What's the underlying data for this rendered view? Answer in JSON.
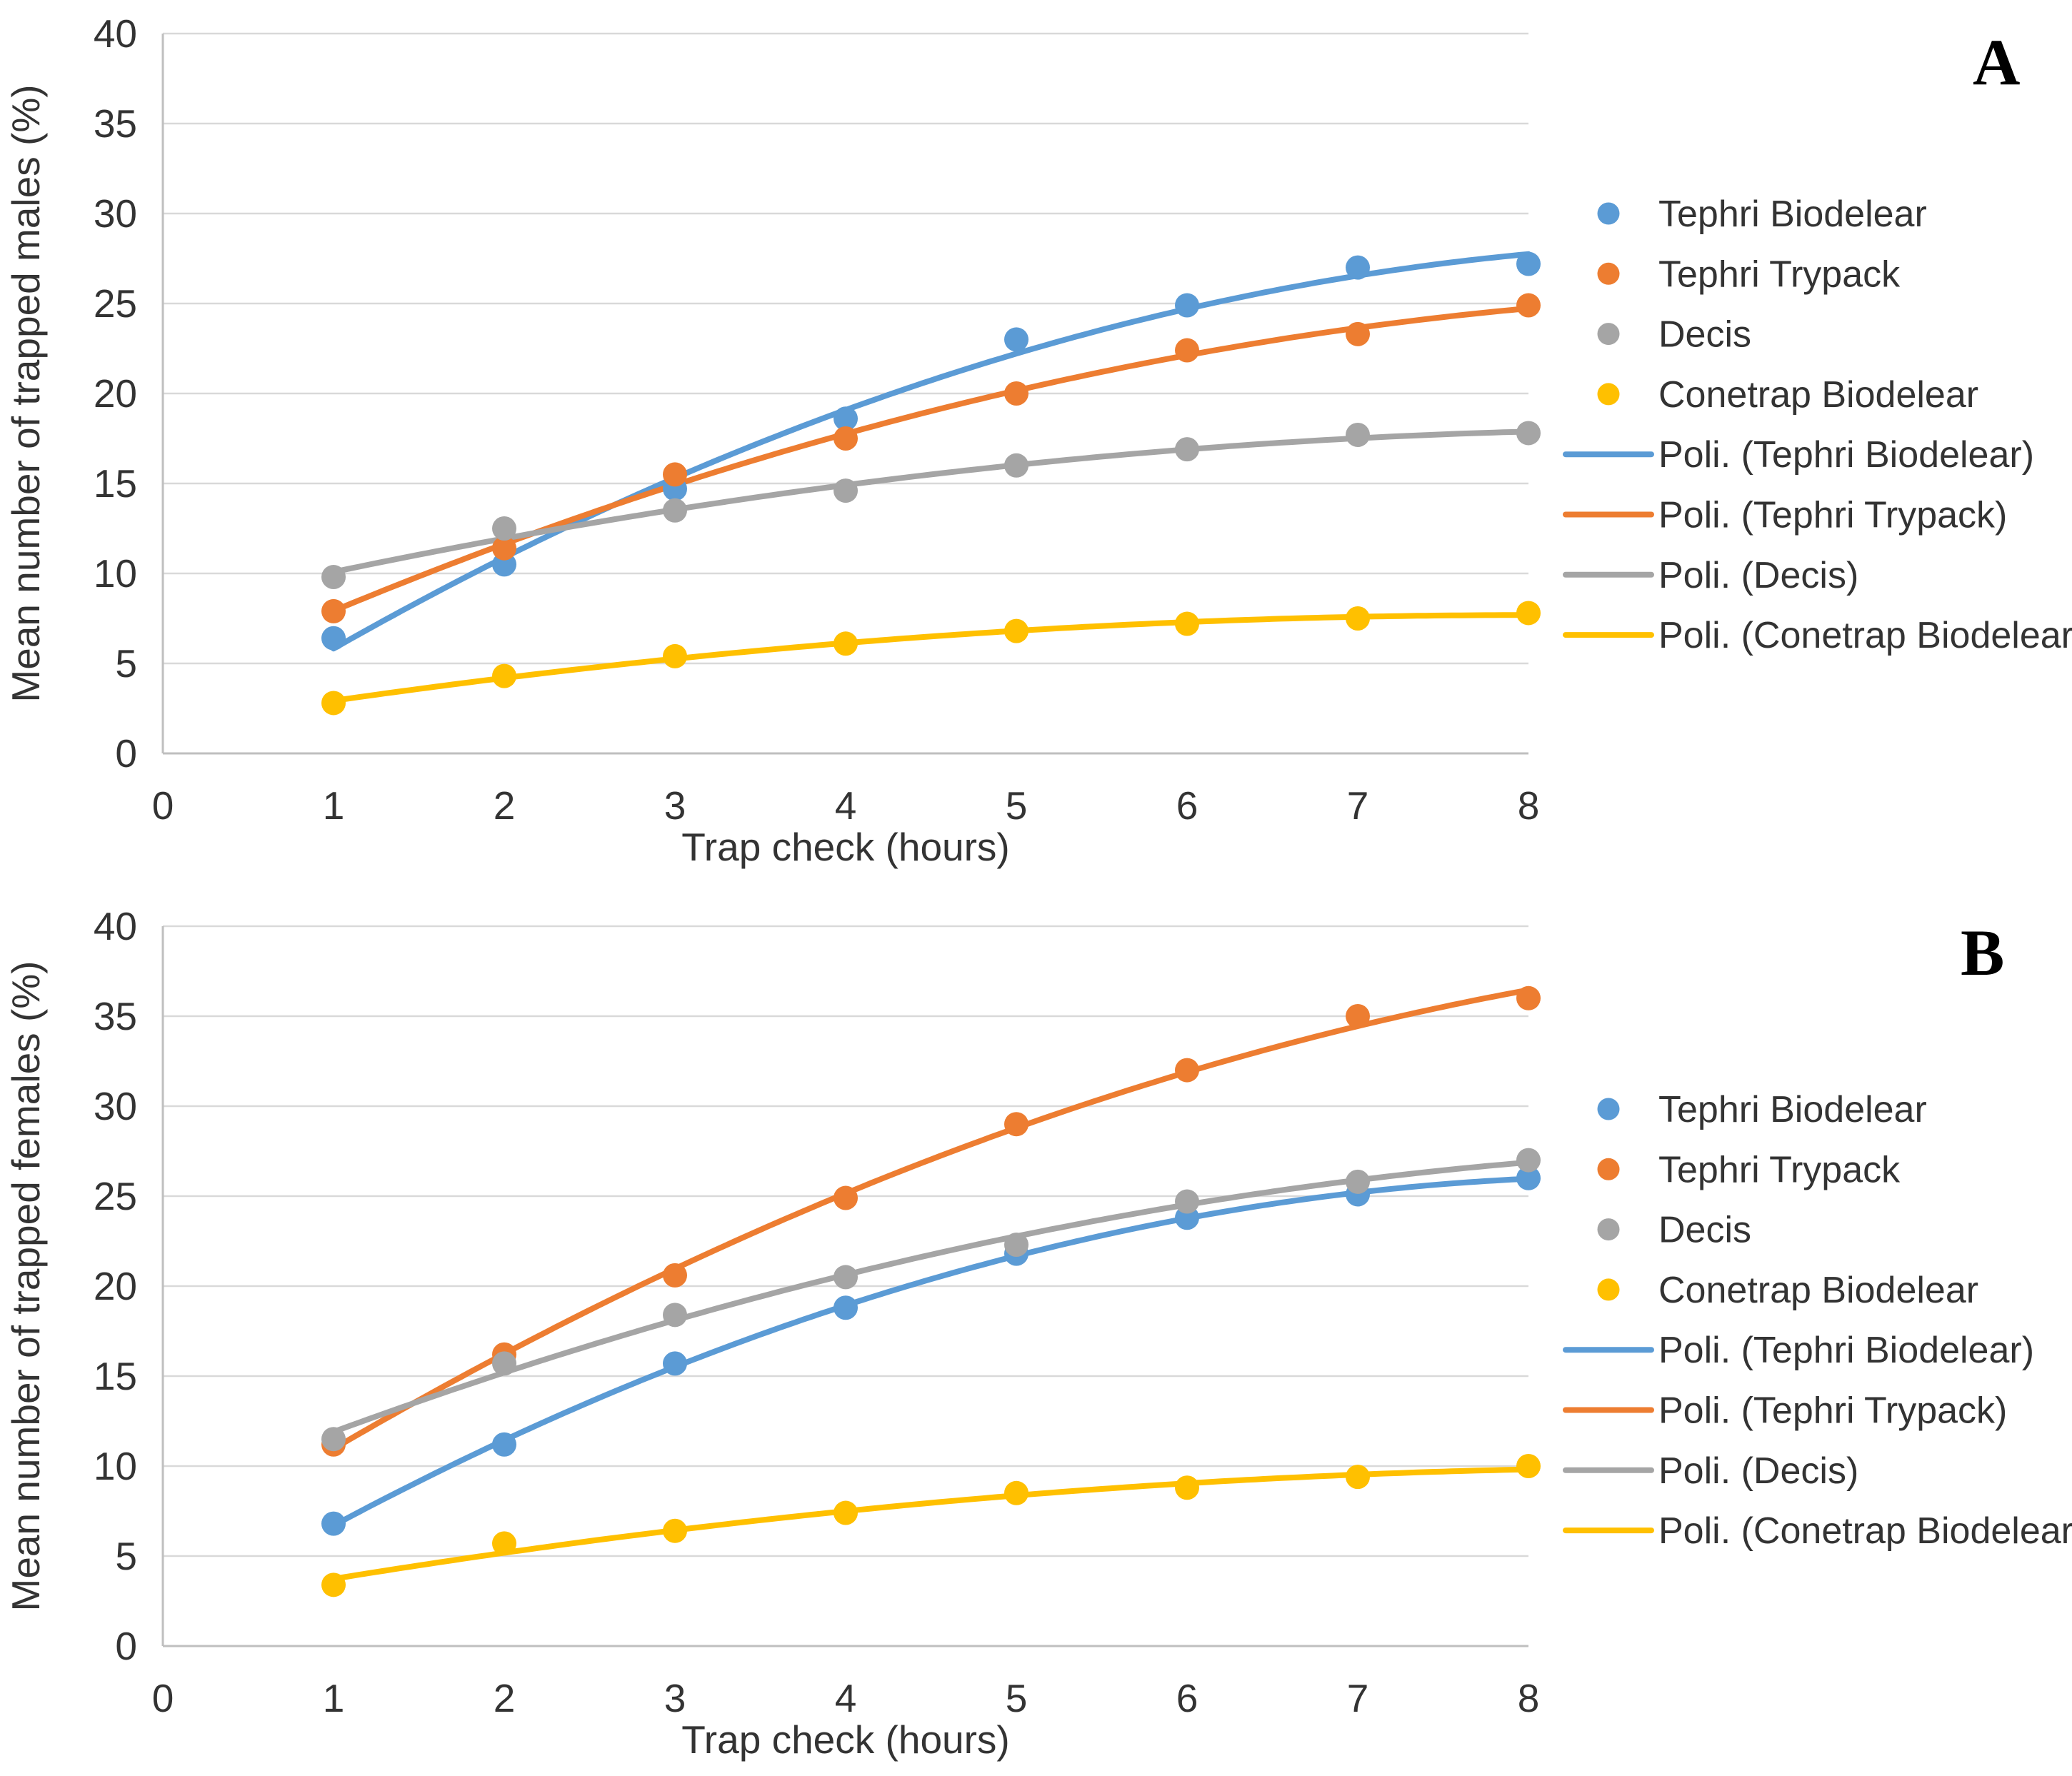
{
  "colors": {
    "blue": "#5B9BD5",
    "orange": "#ED7D31",
    "gray": "#A5A5A5",
    "yellow": "#FFC000",
    "grid": "#D9D9D9",
    "axis": "#BFBFBF",
    "text": "#333333",
    "letter": "#000000"
  },
  "chart_data": [
    {
      "type": "scatter",
      "panel": "A",
      "xlabel": "Trap check (hours)",
      "ylabel": "Mean number of trapped males (%)",
      "xlim": [
        0,
        8
      ],
      "ylim": [
        0,
        40
      ],
      "x_ticks": [
        0,
        1,
        2,
        3,
        4,
        5,
        6,
        7,
        8
      ],
      "y_ticks": [
        0,
        5,
        10,
        15,
        20,
        25,
        30,
        35,
        40
      ],
      "grid": "horizontal",
      "legend_position": "right",
      "x": [
        1,
        2,
        3,
        4,
        5,
        6,
        7,
        8
      ],
      "series": [
        {
          "name": "Tephri Biodelear",
          "color_key": "blue",
          "values": [
            6.4,
            10.5,
            14.7,
            18.6,
            23.0,
            24.9,
            27.0,
            27.2
          ]
        },
        {
          "name": "Tephri Trypack",
          "color_key": "orange",
          "values": [
            7.9,
            11.4,
            15.5,
            17.5,
            20.0,
            22.4,
            23.3,
            24.9
          ]
        },
        {
          "name": "Decis",
          "color_key": "gray",
          "values": [
            9.8,
            12.5,
            13.5,
            14.6,
            16.0,
            16.9,
            17.7,
            17.8
          ]
        },
        {
          "name": "Conetrap Biodelear",
          "color_key": "yellow",
          "values": [
            2.8,
            4.3,
            5.4,
            6.1,
            6.8,
            7.2,
            7.5,
            7.8
          ]
        }
      ],
      "trendlines": [
        {
          "name": "Poli. (Tephri Biodelear)",
          "series": "Tephri Biodelear",
          "color_key": "blue",
          "kind": "polynomial-2"
        },
        {
          "name": "Poli. (Tephri Trypack)",
          "series": "Tephri Trypack",
          "color_key": "orange",
          "kind": "polynomial-2"
        },
        {
          "name": "Poli. (Decis)",
          "series": "Decis",
          "color_key": "gray",
          "kind": "polynomial-2"
        },
        {
          "name": "Poli. (Conetrap Biodelear)",
          "series": "Conetrap Biodelear",
          "color_key": "yellow",
          "kind": "polynomial-2"
        }
      ],
      "legend_labels": [
        "Tephri Biodelear",
        "Tephri Trypack",
        "Decis",
        "Conetrap Biodelear",
        "Poli. (Tephri Biodelear)",
        "Poli. (Tephri Trypack)",
        "Poli. (Decis)",
        "Poli. (Conetrap Biodelear)"
      ]
    },
    {
      "type": "scatter",
      "panel": "B",
      "xlabel": "Trap check (hours)",
      "ylabel": "Mean number of trapped females (%)",
      "xlim": [
        0,
        8
      ],
      "ylim": [
        0,
        40
      ],
      "x_ticks": [
        0,
        1,
        2,
        3,
        4,
        5,
        6,
        7,
        8
      ],
      "y_ticks": [
        0,
        5,
        10,
        15,
        20,
        25,
        30,
        35,
        40
      ],
      "grid": "horizontal",
      "legend_position": "right",
      "x": [
        1,
        2,
        3,
        4,
        5,
        6,
        7,
        8
      ],
      "series": [
        {
          "name": "Tephri Biodelear",
          "color_key": "blue",
          "values": [
            6.8,
            11.2,
            15.7,
            18.8,
            21.8,
            23.8,
            25.1,
            26.0
          ]
        },
        {
          "name": "Tephri Trypack",
          "color_key": "orange",
          "values": [
            11.2,
            16.2,
            20.6,
            24.9,
            29.0,
            32.0,
            35.0,
            36.0
          ]
        },
        {
          "name": "Decis",
          "color_key": "gray",
          "values": [
            11.5,
            15.7,
            18.4,
            20.5,
            22.3,
            24.7,
            25.8,
            27.0
          ]
        },
        {
          "name": "Conetrap Biodelear",
          "color_key": "yellow",
          "values": [
            3.4,
            5.7,
            6.4,
            7.4,
            8.5,
            8.8,
            9.4,
            10.0
          ]
        }
      ],
      "trendlines": [
        {
          "name": "Poli. (Tephri Biodelear)",
          "series": "Tephri Biodelear",
          "color_key": "blue",
          "kind": "polynomial-2"
        },
        {
          "name": "Poli. (Tephri Trypack)",
          "series": "Tephri Trypack",
          "color_key": "orange",
          "kind": "polynomial-2"
        },
        {
          "name": "Poli. (Decis)",
          "series": "Decis",
          "color_key": "gray",
          "kind": "polynomial-2"
        },
        {
          "name": "Poli. (Conetrap Biodelear)",
          "series": "Conetrap Biodelear",
          "color_key": "yellow",
          "kind": "polynomial-2"
        }
      ],
      "legend_labels": [
        "Tephri Biodelear",
        "Tephri Trypack",
        "Decis",
        "Conetrap Biodelear",
        "Poli. (Tephri Biodelear)",
        "Poli. (Tephri Trypack)",
        "Poli. (Decis)",
        "Poli. (Conetrap Biodelear)"
      ]
    }
  ]
}
